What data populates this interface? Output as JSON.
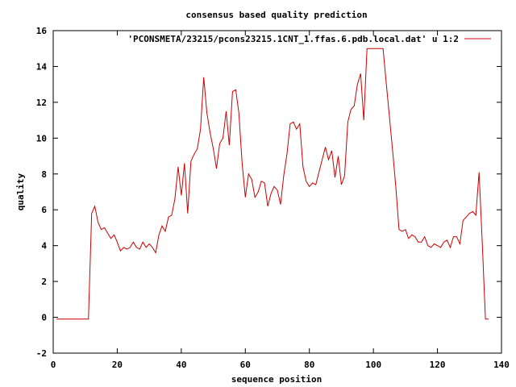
{
  "chart_data": {
    "type": "line",
    "title": "consensus based quality prediction",
    "xlabel": "sequence position",
    "ylabel": "quality",
    "xlim": [
      0,
      140
    ],
    "ylim": [
      -2,
      16
    ],
    "xticks": [
      0,
      20,
      40,
      60,
      80,
      100,
      120,
      140
    ],
    "yticks": [
      -2,
      0,
      2,
      4,
      6,
      8,
      10,
      12,
      14,
      16
    ],
    "legend_position": "top-right",
    "grid": false,
    "series": [
      {
        "name": "'PCONSMETA/23215/pcons23215.1CNT_1.ffas.6.pdb.local.dat' u 1:2",
        "color": "#cc0000",
        "x": [
          1,
          2,
          3,
          4,
          5,
          6,
          7,
          8,
          9,
          10,
          11,
          12,
          13,
          14,
          15,
          16,
          17,
          18,
          19,
          20,
          21,
          22,
          23,
          24,
          25,
          26,
          27,
          28,
          29,
          30,
          31,
          32,
          33,
          34,
          35,
          36,
          37,
          38,
          39,
          40,
          41,
          42,
          43,
          44,
          45,
          46,
          47,
          48,
          49,
          50,
          51,
          52,
          53,
          54,
          55,
          56,
          57,
          58,
          59,
          60,
          61,
          62,
          63,
          64,
          65,
          66,
          67,
          68,
          69,
          70,
          71,
          72,
          73,
          74,
          75,
          76,
          77,
          78,
          79,
          80,
          81,
          82,
          83,
          84,
          85,
          86,
          87,
          88,
          89,
          90,
          91,
          92,
          93,
          94,
          95,
          96,
          97,
          98,
          99,
          100,
          101,
          102,
          103,
          104,
          105,
          106,
          107,
          108,
          109,
          110,
          111,
          112,
          113,
          114,
          115,
          116,
          117,
          118,
          119,
          120,
          121,
          122,
          123,
          124,
          125,
          126,
          127,
          128,
          129,
          130,
          131,
          132,
          133,
          134,
          135,
          136
        ],
        "y": [
          -0.1,
          -0.1,
          -0.1,
          -0.1,
          -0.1,
          -0.1,
          -0.1,
          -0.1,
          -0.1,
          -0.1,
          -0.1,
          5.8,
          6.2,
          5.3,
          4.9,
          5.0,
          4.7,
          4.4,
          4.6,
          4.2,
          3.7,
          3.9,
          3.8,
          3.9,
          4.2,
          3.9,
          3.8,
          4.2,
          3.9,
          4.1,
          3.9,
          3.6,
          4.6,
          5.1,
          4.8,
          5.6,
          5.7,
          6.6,
          8.4,
          6.8,
          8.6,
          5.8,
          8.7,
          9.1,
          9.4,
          10.5,
          13.4,
          11.4,
          10.3,
          9.4,
          8.3,
          9.7,
          10.0,
          11.5,
          9.6,
          12.6,
          12.7,
          11.4,
          8.6,
          6.7,
          8.0,
          7.7,
          6.7,
          7.0,
          7.6,
          7.5,
          6.2,
          6.9,
          7.3,
          7.1,
          6.3,
          7.9,
          9.1,
          10.8,
          10.9,
          10.5,
          10.8,
          8.4,
          7.6,
          7.3,
          7.5,
          7.4,
          8.1,
          8.8,
          9.5,
          8.8,
          9.3,
          7.8,
          9.0,
          7.4,
          7.9,
          10.9,
          11.6,
          11.8,
          13.0,
          13.6,
          11.0,
          15.0,
          15.0,
          15.0,
          15.0,
          15.0,
          15.0,
          13.1,
          11.2,
          9.3,
          7.3,
          4.9,
          4.8,
          4.9,
          4.4,
          4.6,
          4.5,
          4.2,
          4.2,
          4.5,
          4.0,
          3.9,
          4.1,
          4.0,
          3.9,
          4.2,
          4.3,
          3.9,
          4.5,
          4.5,
          4.1,
          5.4,
          5.6,
          5.8,
          5.9,
          5.7,
          8.1,
          4.1,
          -0.1,
          -0.1
        ]
      }
    ]
  }
}
